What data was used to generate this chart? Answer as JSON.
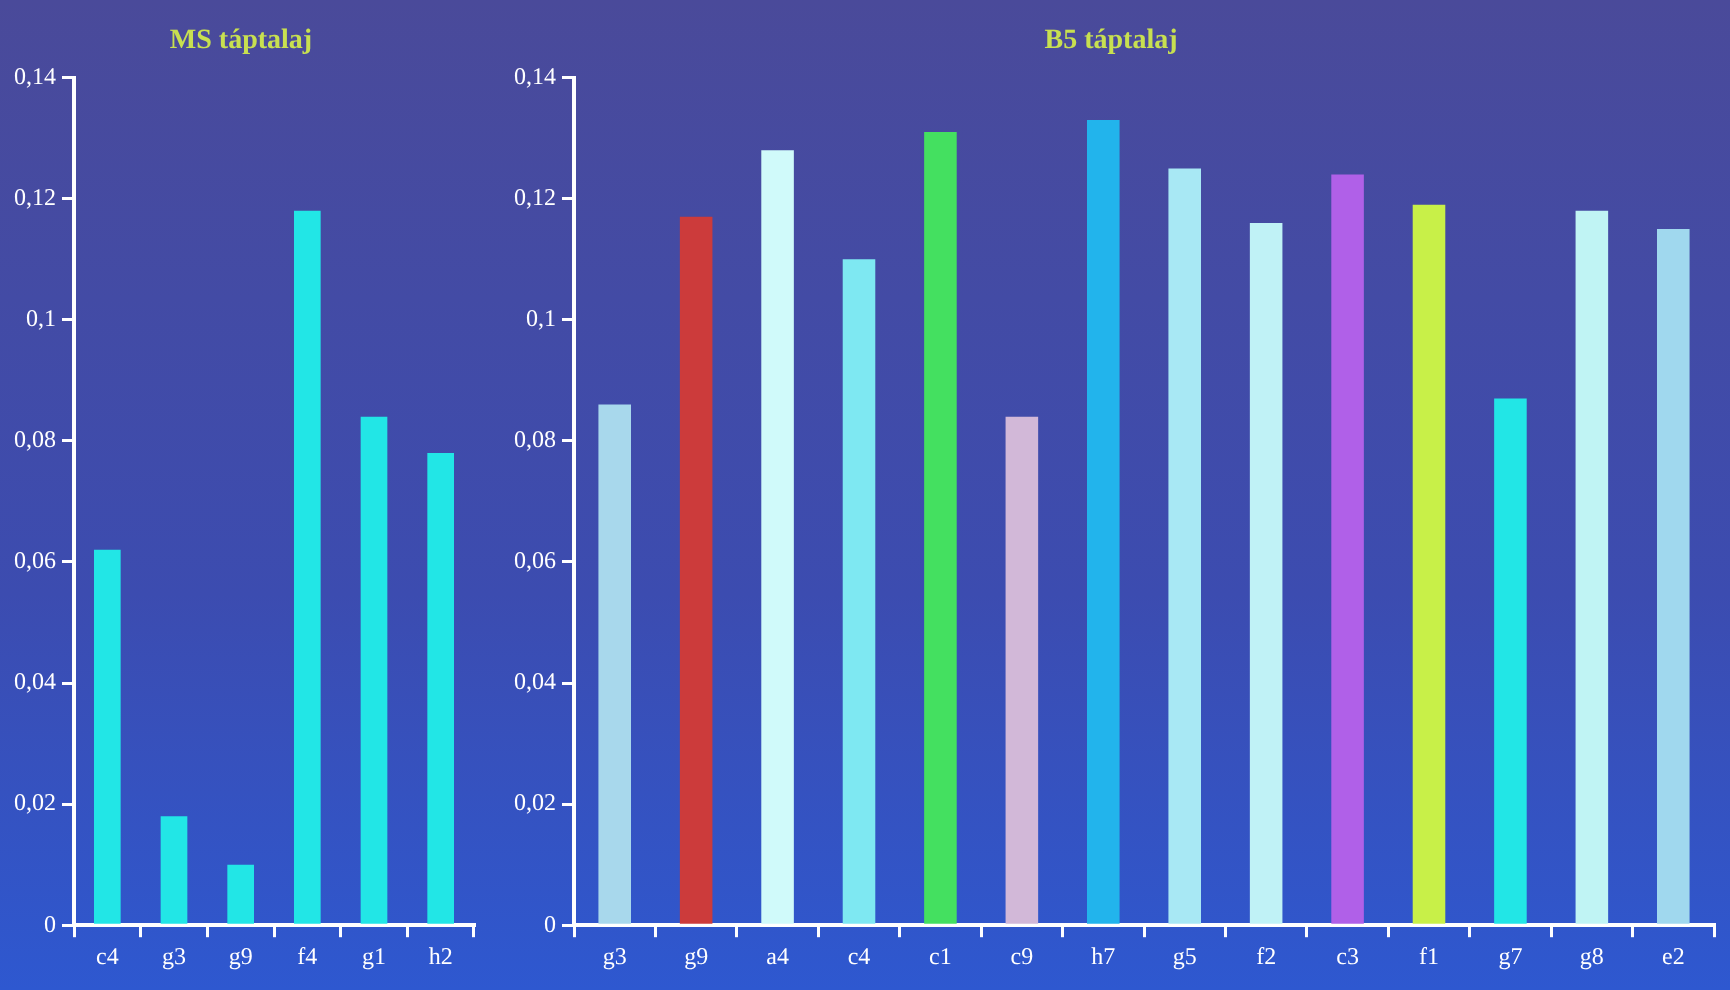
{
  "chart_data": [
    {
      "type": "bar",
      "title": "MS táptalaj",
      "categories": [
        "c4",
        "g3",
        "g9",
        "f4",
        "g1",
        "h2"
      ],
      "values": [
        0.062,
        0.018,
        0.01,
        0.118,
        0.084,
        0.078
      ],
      "color": "#22e6e6",
      "ylim": [
        0,
        0.14
      ],
      "yticks": [
        0,
        {
          "value": 0.02,
          "label": "0,02"
        },
        {
          "value": 0.04,
          "label": "0,04"
        },
        {
          "value": 0.06,
          "label": "0,06"
        },
        {
          "value": 0.08,
          "label": "0,08"
        },
        {
          "value": 0.1,
          "label": "0,1"
        },
        {
          "value": 0.12,
          "label": "0,12"
        },
        {
          "value": 0.14,
          "label": "0,14"
        }
      ],
      "grid": false,
      "legend": false
    },
    {
      "type": "bar",
      "title": "B5 táptalaj",
      "categories": [
        "g3",
        "g9",
        "a4",
        "c4",
        "c1",
        "c9",
        "h7",
        "g5",
        "f2",
        "c3",
        "f1",
        "g7",
        "g8",
        "e2"
      ],
      "values": [
        0.086,
        0.117,
        0.128,
        0.11,
        0.131,
        0.084,
        0.133,
        0.125,
        0.116,
        0.124,
        0.119,
        0.087,
        0.118,
        0.115
      ],
      "colors": [
        "#a8d8ec",
        "#cc3b3b",
        "#d0fafa",
        "#7ee8f2",
        "#44e060",
        "#d2b8d8",
        "#22b4ec",
        "#a8e8f4",
        "#c0f2f6",
        "#b060e8",
        "#c8f048",
        "#22e6e6",
        "#c0f4f4",
        "#a0d8ee"
      ],
      "ylim": [
        0,
        0.14
      ],
      "yticks": [
        0,
        {
          "value": 0.02,
          "label": "0,02"
        },
        {
          "value": 0.04,
          "label": "0,04"
        },
        {
          "value": 0.06,
          "label": "0,06"
        },
        {
          "value": 0.08,
          "label": "0,08"
        },
        {
          "value": 0.1,
          "label": "0,1"
        },
        {
          "value": 0.12,
          "label": "0,12"
        },
        {
          "value": 0.14,
          "label": "0,14"
        }
      ],
      "grid": false,
      "legend": false
    }
  ]
}
